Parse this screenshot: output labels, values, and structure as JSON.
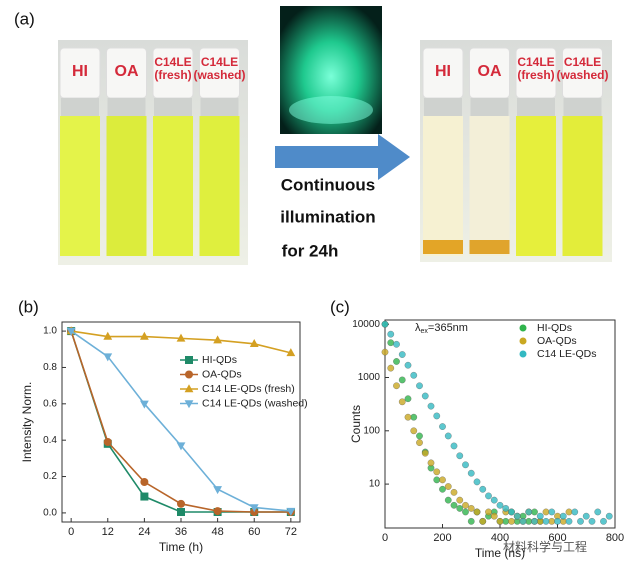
{
  "panels": [
    "(a)",
    "(b)",
    "(c)"
  ],
  "photo_before": {
    "labels": [
      [
        "HI"
      ],
      [
        "OA"
      ],
      [
        "C14LE",
        "(fresh)"
      ],
      [
        "C14LE",
        "(washed)"
      ]
    ]
  },
  "photo_after": {
    "labels": [
      [
        "HI"
      ],
      [
        "OA"
      ],
      [
        "C14LE",
        "(fresh)"
      ],
      [
        "C14LE",
        "(washed)"
      ]
    ]
  },
  "arrow_text": [
    "Continuous",
    "illumination",
    "for 24h"
  ],
  "watermark": "材料科学与工程",
  "chart_data": [
    {
      "type": "line",
      "xlabel": "Time (h)",
      "ylabel": "Intensity Norm.",
      "x": [
        0,
        12,
        24,
        36,
        48,
        60,
        72
      ],
      "xlim": [
        -3,
        75
      ],
      "xticks": [
        0,
        12,
        24,
        36,
        48,
        60,
        72
      ],
      "ylim": [
        -0.05,
        1.05
      ],
      "yticks": [
        {
          "value": 0,
          "label": "0.0"
        },
        0.2,
        0.4,
        0.6,
        0.8,
        {
          "value": 1,
          "label": "1.0"
        }
      ],
      "legend": "center right",
      "series": [
        {
          "name": "HI-QDs",
          "color": "#1f8a68",
          "marker": "square",
          "values": [
            1.0,
            0.38,
            0.09,
            0.005,
            0.005,
            0.005,
            0.005
          ]
        },
        {
          "name": "OA-QDs",
          "color": "#b8652a",
          "marker": "circle",
          "values": [
            1.0,
            0.39,
            0.17,
            0.05,
            0.01,
            0.005,
            0.005
          ]
        },
        {
          "name": "C14 LE-QDs (fresh)",
          "color": "#d4a022",
          "marker": "triangle-up",
          "values": [
            1.0,
            0.97,
            0.97,
            0.96,
            0.95,
            0.93,
            0.88
          ]
        },
        {
          "name": "C14 LE-QDs (washed)",
          "color": "#6db0d8",
          "marker": "triangle-down",
          "values": [
            1.0,
            0.86,
            0.6,
            0.37,
            0.13,
            0.03,
            0.01
          ]
        }
      ]
    },
    {
      "type": "scatter",
      "xlabel": "Time (ns)",
      "ylabel": "Counts",
      "annotation": {
        "symbol": "λ",
        "sub": "ex",
        "text": "=365nm"
      },
      "log_y": true,
      "x": [
        0,
        20,
        40,
        60,
        80,
        100,
        120,
        140,
        160,
        180,
        200,
        220,
        240,
        260,
        280,
        300,
        320,
        340,
        360,
        380,
        400,
        420,
        440,
        460,
        480,
        500,
        520,
        540,
        560,
        580,
        600,
        620,
        640,
        660,
        680,
        700,
        720,
        740,
        760,
        780
      ],
      "xlim": [
        0,
        800
      ],
      "xticks": [
        0,
        200,
        400,
        600,
        800
      ],
      "ylim": [
        1.5,
        12000
      ],
      "yticks": [
        10,
        100,
        1000,
        10000
      ],
      "legend": "upper right",
      "series": [
        {
          "name": "HI-QDs",
          "color": "#2fb44c",
          "values": [
            10000,
            4500,
            2000,
            900,
            400,
            180,
            80,
            40,
            20,
            12,
            8,
            5,
            4,
            3.5,
            3,
            2,
            3,
            2,
            2.5,
            3,
            2,
            2,
            3,
            2,
            2.5,
            2,
            3,
            2,
            null,
            null,
            null,
            null,
            null,
            null,
            null,
            null,
            null,
            null,
            null,
            null
          ]
        },
        {
          "name": "OA-QDs",
          "color": "#c9a822",
          "values": [
            3000,
            1500,
            700,
            350,
            180,
            100,
            60,
            38,
            25,
            17,
            12,
            9,
            7,
            5,
            4,
            3.5,
            3,
            2,
            3,
            2.5,
            2,
            3,
            2,
            2.5,
            2,
            3,
            2,
            2,
            3,
            2,
            2.5,
            2,
            3,
            null,
            null,
            null,
            null,
            null,
            null,
            null
          ]
        },
        {
          "name": "C14 LE-QDs",
          "color": "#33b9c2",
          "values": [
            10000,
            6500,
            4200,
            2700,
            1700,
            1100,
            700,
            450,
            290,
            190,
            120,
            80,
            52,
            34,
            23,
            16,
            11,
            8,
            6,
            5,
            4,
            3.5,
            3,
            2.5,
            2,
            3,
            2,
            2.5,
            2,
            3,
            2,
            2.5,
            2,
            3,
            2,
            2.5,
            2,
            3,
            2,
            2.5
          ]
        }
      ]
    }
  ]
}
